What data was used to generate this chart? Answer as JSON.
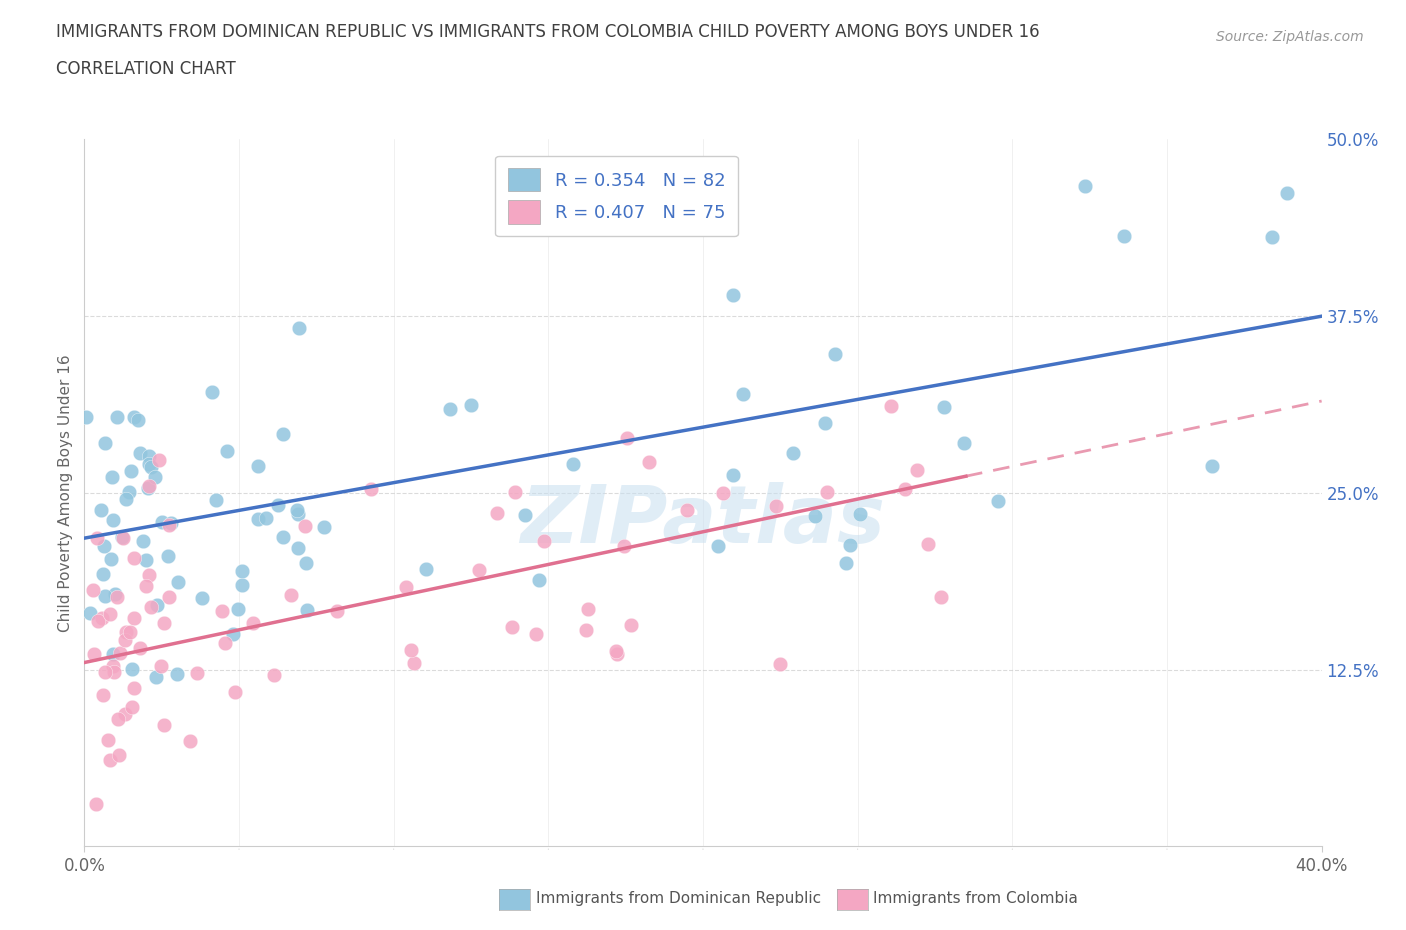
{
  "title_line1": "IMMIGRANTS FROM DOMINICAN REPUBLIC VS IMMIGRANTS FROM COLOMBIA CHILD POVERTY AMONG BOYS UNDER 16",
  "title_line2": "CORRELATION CHART",
  "source_text": "Source: ZipAtlas.com",
  "ylabel": "Child Poverty Among Boys Under 16",
  "x_min": 0.0,
  "x_max": 0.4,
  "y_min": 0.0,
  "y_max": 0.5,
  "series1_color": "#92c5de",
  "series2_color": "#f4a7c3",
  "trend1_color": "#4472c4",
  "trend2_color": "#e07090",
  "R1": 0.354,
  "N1": 82,
  "R2": 0.407,
  "N2": 75,
  "legend1_label": "Immigrants from Dominican Republic",
  "legend2_label": "Immigrants from Colombia",
  "watermark": "ZIPatlas",
  "background_color": "#ffffff",
  "grid_color": "#cccccc",
  "title_color": "#404040",
  "axis_label_color": "#4472c4",
  "trend1_x0": 0.0,
  "trend1_y0": 0.218,
  "trend1_x1": 0.4,
  "trend1_y1": 0.375,
  "trend2_x0": 0.0,
  "trend2_y0": 0.13,
  "trend2_x1": 0.4,
  "trend2_y1": 0.315,
  "trend2_solid_end": 0.285
}
